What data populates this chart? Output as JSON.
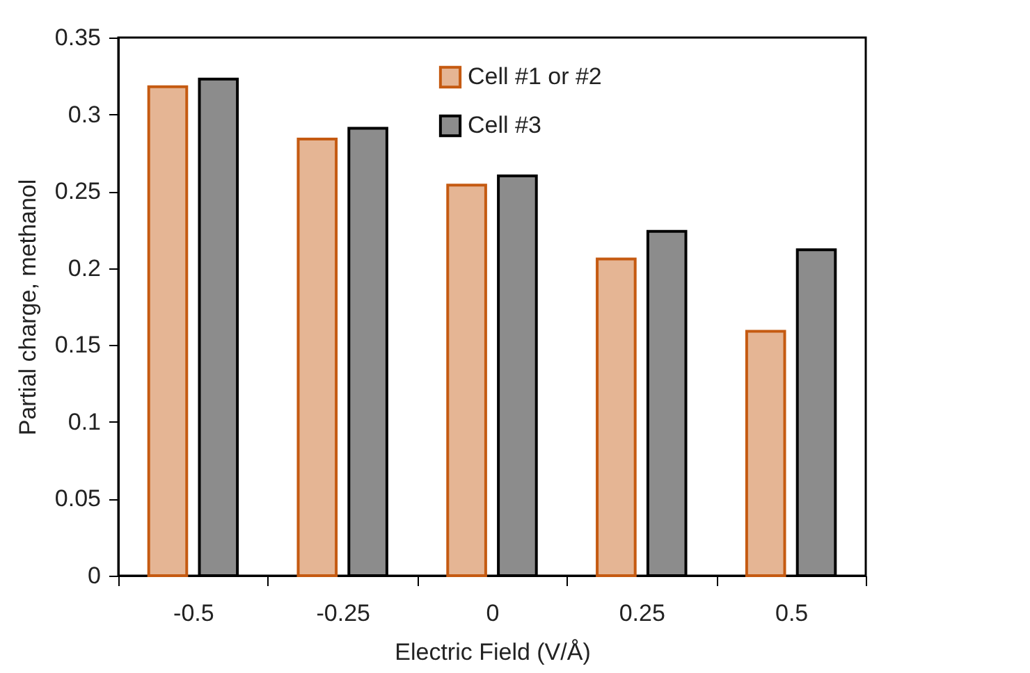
{
  "chart_data": {
    "type": "bar",
    "xlabel": "Electric Field (V/Å)",
    "ylabel": "Partial charge, methanol",
    "categories": [
      "-0.5",
      "-0.25",
      "0",
      "0.25",
      "0.5"
    ],
    "series": [
      {
        "name": "Cell #1 or #2",
        "color": "#c55a11",
        "values": [
          0.318,
          0.284,
          0.254,
          0.206,
          0.159
        ]
      },
      {
        "name": "Cell #3",
        "color": "#000000",
        "values": [
          0.323,
          0.291,
          0.26,
          0.224,
          0.212
        ]
      }
    ],
    "ylim": [
      0,
      0.35
    ],
    "yticks": [
      0,
      0.05,
      0.1,
      0.15,
      0.2,
      0.25,
      0.3,
      0.35
    ],
    "grid": false,
    "legend": "top"
  }
}
